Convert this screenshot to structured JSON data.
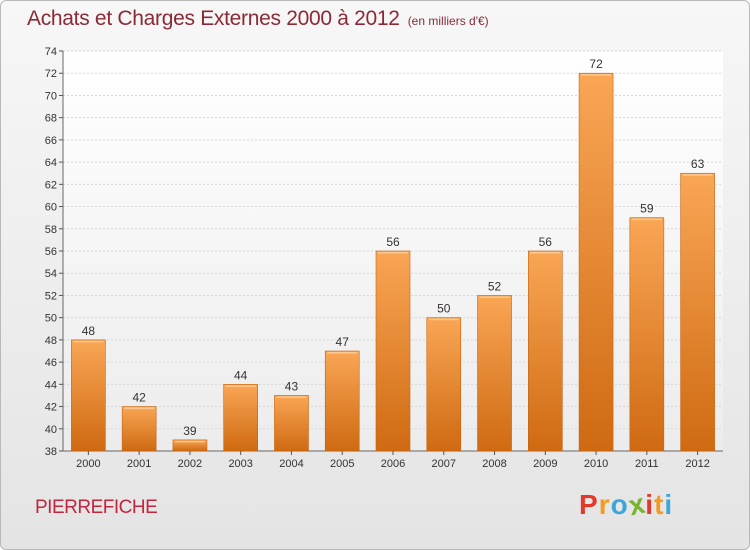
{
  "chart_data": {
    "type": "bar",
    "title": "Achats et Charges Externes 2000 à 2012",
    "subtitle": "(en milliers d'€)",
    "categories": [
      "2000",
      "2001",
      "2002",
      "2003",
      "2004",
      "2005",
      "2006",
      "2007",
      "2008",
      "2009",
      "2010",
      "2011",
      "2012"
    ],
    "values": [
      48,
      42,
      39,
      44,
      43,
      47,
      56,
      50,
      52,
      56,
      72,
      59,
      63
    ],
    "ylim": [
      38,
      74
    ],
    "ytick_step": 2,
    "grid": true,
    "xlabel": "",
    "ylabel": "",
    "bar_color": "#f08e2e"
  },
  "footer": {
    "commune": "PIERREFICHE",
    "brand": "Proxiti",
    "brand_colors": [
      "#e5382b",
      "#f39a1f",
      "#3aa6d9",
      "#7ab32e",
      "#e5382b",
      "#f39a1f",
      "#3aa6d9"
    ]
  }
}
